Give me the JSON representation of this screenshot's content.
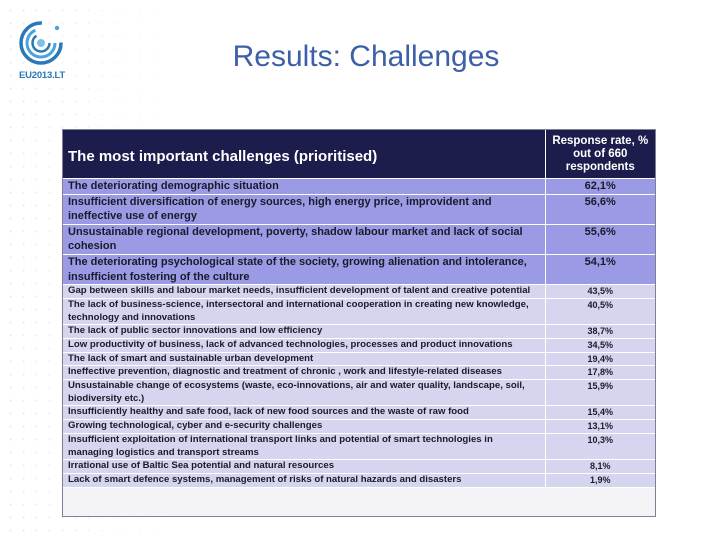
{
  "logo": {
    "text": "EU2013.LT"
  },
  "slide": {
    "title": "Results: Challenges"
  },
  "table": {
    "header": {
      "challenge": "The most important challenges (prioritised)",
      "rate": "Response rate, % out of 660 respondents"
    },
    "rows": [
      {
        "label": "The deteriorating demographic situation",
        "value": "62,1%",
        "emphasis": "high"
      },
      {
        "label": "Insufficient diversification of energy sources, high energy price, improvident and ineffective use of energy",
        "value": "56,6%",
        "emphasis": "high"
      },
      {
        "label": "Unsustainable regional development, poverty, shadow labour market and lack of social cohesion",
        "value": "55,6%",
        "emphasis": "high"
      },
      {
        "label": "The deteriorating psychological state of the society, growing alienation and intolerance, insufficient fostering of the culture",
        "value": "54,1%",
        "emphasis": "high"
      },
      {
        "label": "Gap between skills and labour market needs, insufficient development of talent and creative potential",
        "value": "43,5%",
        "emphasis": "low"
      },
      {
        "label": "The lack of business-science, intersectoral and international cooperation in creating new knowledge, technology and innovations",
        "value": "40,5%",
        "emphasis": "low"
      },
      {
        "label": "The lack of public sector innovations and low efficiency",
        "value": "38,7%",
        "emphasis": "low"
      },
      {
        "label": "Low productivity of business, lack of advanced technologies, processes and product innovations",
        "value": "34,5%",
        "emphasis": "low"
      },
      {
        "label": "The lack of smart and sustainable urban development",
        "value": "19,4%",
        "emphasis": "low"
      },
      {
        "label": "Ineffective prevention, diagnostic and treatment of chronic , work and lifestyle-related diseases",
        "value": "17,8%",
        "emphasis": "low"
      },
      {
        "label": "Unsustainable change of ecosystems (waste, eco-innovations, air and water quality, landscape, soil, biodiversity etc.)",
        "value": "15,9%",
        "emphasis": "low"
      },
      {
        "label": "Insufficiently healthy and safe food, lack of new food sources and the waste of raw food",
        "value": "15,4%",
        "emphasis": "low"
      },
      {
        "label": "Growing technological, cyber and e-security challenges",
        "value": "13,1%",
        "emphasis": "low"
      },
      {
        "label": "Insufficient exploitation of international transport links and potential of smart technologies in managing logistics and transport streams",
        "value": "10,3%",
        "emphasis": "low"
      },
      {
        "label": "Irrational use of Baltic Sea potential and natural resources",
        "value": "8,1%",
        "emphasis": "low"
      },
      {
        "label": "Lack of smart defence systems, management of risks of natural hazards and disasters",
        "value": "1,9%",
        "emphasis": "low"
      }
    ]
  }
}
